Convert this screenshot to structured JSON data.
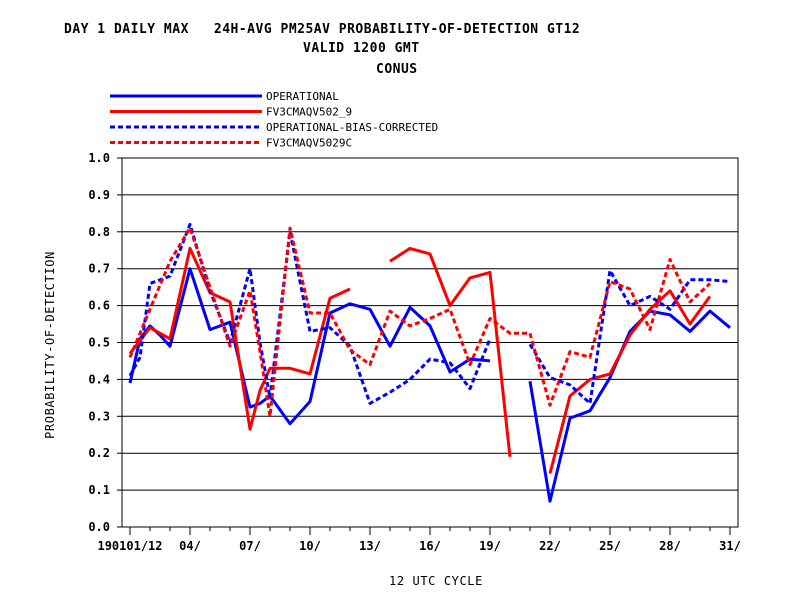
{
  "title": {
    "line1": "DAY 1 DAILY MAX   24H-AVG PM25AV PROBABILITY-OF-DETECTION GT12",
    "line2": "VALID 1200 GMT",
    "line3": "CONUS"
  },
  "chart_data": {
    "type": "line",
    "xlabel": "12 UTC CYCLE",
    "ylabel": "PROBABILITY-OF-DETECTION",
    "ylim": [
      0.0,
      1.0
    ],
    "yticks": [
      "0.0",
      "0.1",
      "0.2",
      "0.3",
      "0.4",
      "0.5",
      "0.6",
      "0.7",
      "0.8",
      "0.9",
      "1.0"
    ],
    "xlim": [
      1,
      31
    ],
    "xticks": [
      {
        "x": 1,
        "label": "190101/12"
      },
      {
        "x": 4,
        "label": "04/"
      },
      {
        "x": 7,
        "label": "07/"
      },
      {
        "x": 10,
        "label": "10/"
      },
      {
        "x": 13,
        "label": "13/"
      },
      {
        "x": 16,
        "label": "16/"
      },
      {
        "x": 19,
        "label": "19/"
      },
      {
        "x": 22,
        "label": "22/"
      },
      {
        "x": 25,
        "label": "25/"
      },
      {
        "x": 28,
        "label": "28/"
      },
      {
        "x": 31,
        "label": "31/"
      }
    ],
    "grid": "horizontal",
    "legend_position": "top-left",
    "series": [
      {
        "name": "OPERATIONAL",
        "color": "#0000ff",
        "dash": "solid",
        "values": [
          [
            1,
            0.39
          ],
          [
            1.5,
            0.51
          ],
          [
            2,
            0.545
          ],
          [
            2.5,
            0.52
          ],
          [
            3,
            0.49
          ],
          [
            4,
            0.7
          ],
          [
            5,
            0.535
          ],
          [
            6,
            0.555
          ],
          [
            7,
            0.325
          ],
          [
            7.5,
            0.335
          ],
          [
            8,
            0.355
          ],
          [
            9,
            0.28
          ],
          [
            10,
            0.34
          ],
          [
            11,
            0.58
          ],
          [
            12,
            0.605
          ],
          [
            13,
            0.59
          ],
          [
            14,
            0.49
          ],
          [
            15,
            0.595
          ],
          [
            16,
            0.545
          ],
          [
            17,
            0.42
          ],
          [
            18,
            0.455
          ],
          [
            19,
            0.45
          ],
          null,
          [
            21,
            0.395
          ],
          [
            22,
            0.07
          ],
          [
            23,
            0.295
          ],
          [
            24,
            0.315
          ],
          [
            25,
            0.405
          ],
          [
            26,
            0.53
          ],
          [
            27,
            0.585
          ],
          [
            28,
            0.575
          ],
          [
            29,
            0.53
          ],
          [
            30,
            0.585
          ],
          [
            31,
            0.54
          ]
        ]
      },
      {
        "name": "FV3CMAQV502_9",
        "color": "#ff0000",
        "dash": "solid",
        "values": [
          [
            1,
            0.47
          ],
          [
            2,
            0.54
          ],
          [
            3,
            0.51
          ],
          [
            4,
            0.755
          ],
          [
            5,
            0.635
          ],
          [
            6,
            0.61
          ],
          [
            7,
            0.265
          ],
          [
            7.5,
            0.37
          ],
          [
            8,
            0.43
          ],
          [
            9,
            0.43
          ],
          [
            10,
            0.415
          ],
          [
            11,
            0.62
          ],
          [
            12,
            0.645
          ],
          null,
          [
            14,
            0.72
          ],
          [
            15,
            0.755
          ],
          [
            16,
            0.74
          ],
          [
            17,
            0.6
          ],
          [
            18,
            0.675
          ],
          [
            19,
            0.69
          ],
          [
            20,
            0.19
          ],
          null,
          [
            22,
            0.145
          ],
          [
            23,
            0.355
          ],
          [
            24,
            0.4
          ],
          [
            25,
            0.415
          ],
          [
            26,
            0.52
          ],
          [
            27,
            0.59
          ],
          [
            28,
            0.64
          ],
          [
            29,
            0.55
          ],
          [
            30,
            0.625
          ]
        ]
      },
      {
        "name": "OPERATIONAL-BIAS-CORRECTED",
        "color": "#0000ff",
        "dash": "dashed",
        "values": [
          [
            1,
            0.41
          ],
          [
            1.5,
            0.46
          ],
          [
            2,
            0.66
          ],
          [
            3,
            0.68
          ],
          [
            4,
            0.82
          ],
          [
            5,
            0.64
          ],
          [
            6,
            0.5
          ],
          [
            7,
            0.7
          ],
          [
            7.5,
            0.5
          ],
          [
            8,
            0.35
          ],
          [
            9,
            0.8
          ],
          [
            10,
            0.53
          ],
          [
            11,
            0.54
          ],
          [
            12,
            0.49
          ],
          [
            13,
            0.335
          ],
          [
            14,
            0.365
          ],
          [
            15,
            0.4
          ],
          [
            16,
            0.455
          ],
          [
            17,
            0.445
          ],
          [
            18,
            0.375
          ],
          [
            19,
            0.51
          ],
          null,
          [
            21,
            0.495
          ],
          [
            22,
            0.405
          ],
          [
            23,
            0.385
          ],
          [
            24,
            0.335
          ],
          [
            25,
            0.695
          ],
          [
            26,
            0.6
          ],
          [
            27,
            0.625
          ],
          [
            28,
            0.59
          ],
          [
            29,
            0.67
          ],
          [
            30,
            0.67
          ],
          [
            31,
            0.665
          ]
        ]
      },
      {
        "name": "FV3CMAQV5029C",
        "color": "#ff0000",
        "dash": "dashed",
        "values": [
          [
            1,
            0.46
          ],
          [
            2,
            0.59
          ],
          [
            3,
            0.72
          ],
          [
            4,
            0.81
          ],
          [
            5,
            0.65
          ],
          [
            6,
            0.49
          ],
          [
            7,
            0.64
          ],
          [
            7.5,
            0.475
          ],
          [
            8,
            0.3
          ],
          [
            9,
            0.81
          ],
          [
            10,
            0.58
          ],
          [
            11,
            0.58
          ],
          [
            12,
            0.48
          ],
          [
            13,
            0.44
          ],
          [
            14,
            0.585
          ],
          [
            15,
            0.545
          ],
          [
            16,
            0.565
          ],
          [
            17,
            0.59
          ],
          [
            18,
            0.44
          ],
          [
            19,
            0.565
          ],
          [
            20,
            0.525
          ],
          [
            21,
            0.525
          ],
          [
            22,
            0.33
          ],
          [
            23,
            0.475
          ],
          [
            24,
            0.46
          ],
          [
            25,
            0.665
          ],
          [
            26,
            0.645
          ],
          [
            27,
            0.535
          ],
          [
            28,
            0.725
          ],
          [
            29,
            0.61
          ],
          [
            30,
            0.66
          ]
        ]
      }
    ]
  }
}
